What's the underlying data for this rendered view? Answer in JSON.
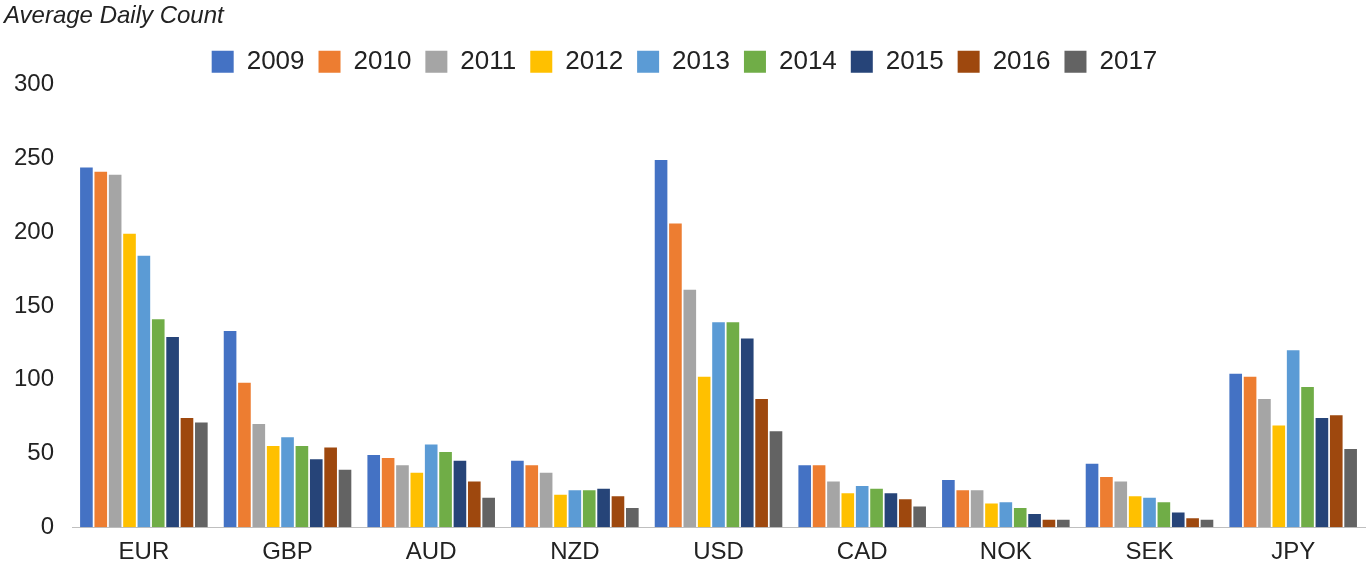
{
  "chart_data": {
    "type": "bar",
    "ylabel": "Average Daily Count",
    "categories": [
      "EUR",
      "GBP",
      "AUD",
      "NZD",
      "USD",
      "CAD",
      "NOK",
      "SEK",
      "JPY"
    ],
    "series": [
      {
        "name": "2009",
        "color": "#4472c4",
        "values": [
          244,
          133,
          49,
          45,
          249,
          42,
          32,
          43,
          104
        ]
      },
      {
        "name": "2010",
        "color": "#ed7d31",
        "values": [
          241,
          98,
          47,
          42,
          206,
          42,
          25,
          34,
          102
        ]
      },
      {
        "name": "2011",
        "color": "#a5a5a5",
        "values": [
          239,
          70,
          42,
          37,
          161,
          31,
          25,
          31,
          87
        ]
      },
      {
        "name": "2012",
        "color": "#ffc000",
        "values": [
          199,
          55,
          37,
          22,
          102,
          23,
          16,
          21,
          69
        ]
      },
      {
        "name": "2013",
        "color": "#5b9bd5",
        "values": [
          184,
          61,
          56,
          25,
          139,
          28,
          17,
          20,
          120
        ]
      },
      {
        "name": "2014",
        "color": "#70ad47",
        "values": [
          141,
          55,
          51,
          25,
          139,
          26,
          13,
          17,
          95
        ]
      },
      {
        "name": "2015",
        "color": "#264478",
        "values": [
          129,
          46,
          45,
          26,
          128,
          23,
          9,
          10,
          74
        ]
      },
      {
        "name": "2016",
        "color": "#9e480e",
        "values": [
          74,
          54,
          31,
          21,
          87,
          19,
          5,
          6,
          76
        ]
      },
      {
        "name": "2017",
        "color": "#636363",
        "values": [
          71,
          39,
          20,
          13,
          65,
          14,
          5,
          5,
          53
        ]
      }
    ],
    "ylim": [
      0,
      300
    ],
    "yticks": [
      0,
      50,
      100,
      150,
      200,
      250,
      300
    ],
    "grid": false,
    "legend": "top"
  }
}
